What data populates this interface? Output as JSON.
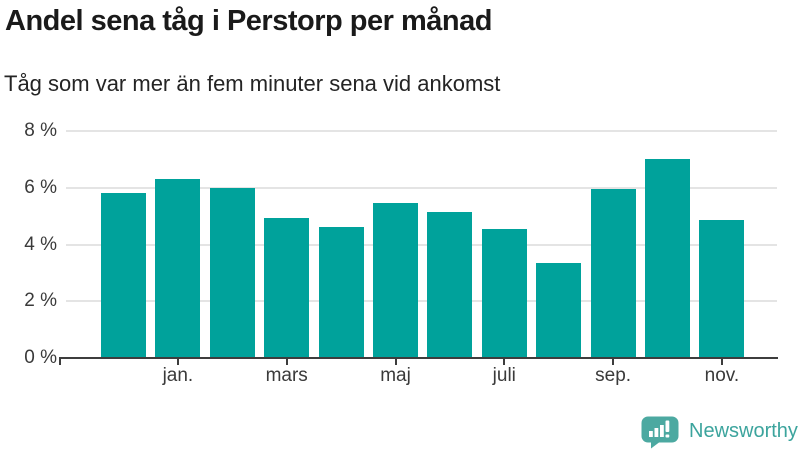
{
  "chart_data": {
    "type": "bar",
    "title": "Andel sena tåg i Perstorp per månad",
    "subtitle": "Tåg som var mer än fem minuter sena vid ankomst",
    "categories": [
      "",
      "jan.",
      "",
      "mars",
      "",
      "maj",
      "",
      "juli",
      "",
      "sep.",
      "",
      "nov."
    ],
    "values": [
      5.8,
      6.3,
      6.0,
      4.95,
      4.6,
      5.45,
      5.15,
      4.55,
      3.35,
      5.95,
      7.0,
      4.85
    ],
    "unit": "%",
    "ylim": [
      0,
      8
    ],
    "y_ticks": [
      {
        "value": 0,
        "label": "0 %"
      },
      {
        "value": 2,
        "label": "2 %"
      },
      {
        "value": 4,
        "label": "4 %"
      },
      {
        "value": 6,
        "label": "6 %"
      },
      {
        "value": 8,
        "label": "8 %"
      }
    ],
    "grid": "horizontal",
    "legend": "none",
    "bar_color": "#00a29b"
  },
  "branding": {
    "name": "Newsworthy",
    "icon": "newsworthy-speech-bubble-bar-chart-icon",
    "icon_color": "#4ca9a1",
    "text_color": "#3ca49d"
  },
  "colors": {
    "background": "#ffffff",
    "title": "#1a1a1a",
    "subtitle": "#242424",
    "axis": "#3d3d3d",
    "tick_label": "#3a3a3a",
    "gridline": "#e4e4e4"
  }
}
